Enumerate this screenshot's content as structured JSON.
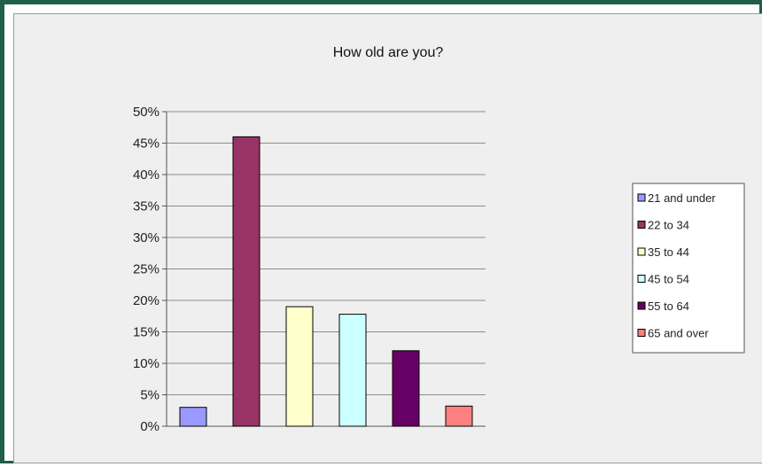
{
  "chart_data": {
    "type": "bar",
    "title": "How old are you?",
    "xlabel": "",
    "ylabel": "",
    "categories": [
      "21 and under",
      "22 to 34",
      "35 to 44",
      "45 to 54",
      "55 to 64",
      "65 and over"
    ],
    "values": [
      3,
      46,
      19,
      17.8,
      12,
      3.2
    ],
    "colors": [
      "#9999ff",
      "#993366",
      "#ffffcc",
      "#ccffff",
      "#660066",
      "#ff8080"
    ],
    "y_ticks": [
      "0%",
      "5%",
      "10%",
      "15%",
      "20%",
      "25%",
      "30%",
      "35%",
      "40%",
      "45%",
      "50%"
    ],
    "ylim": [
      0,
      50
    ],
    "y_unit": "%",
    "grid": true,
    "legend_position": "right",
    "background_color": "#efefef",
    "frame_color": "#1f5e4a"
  }
}
